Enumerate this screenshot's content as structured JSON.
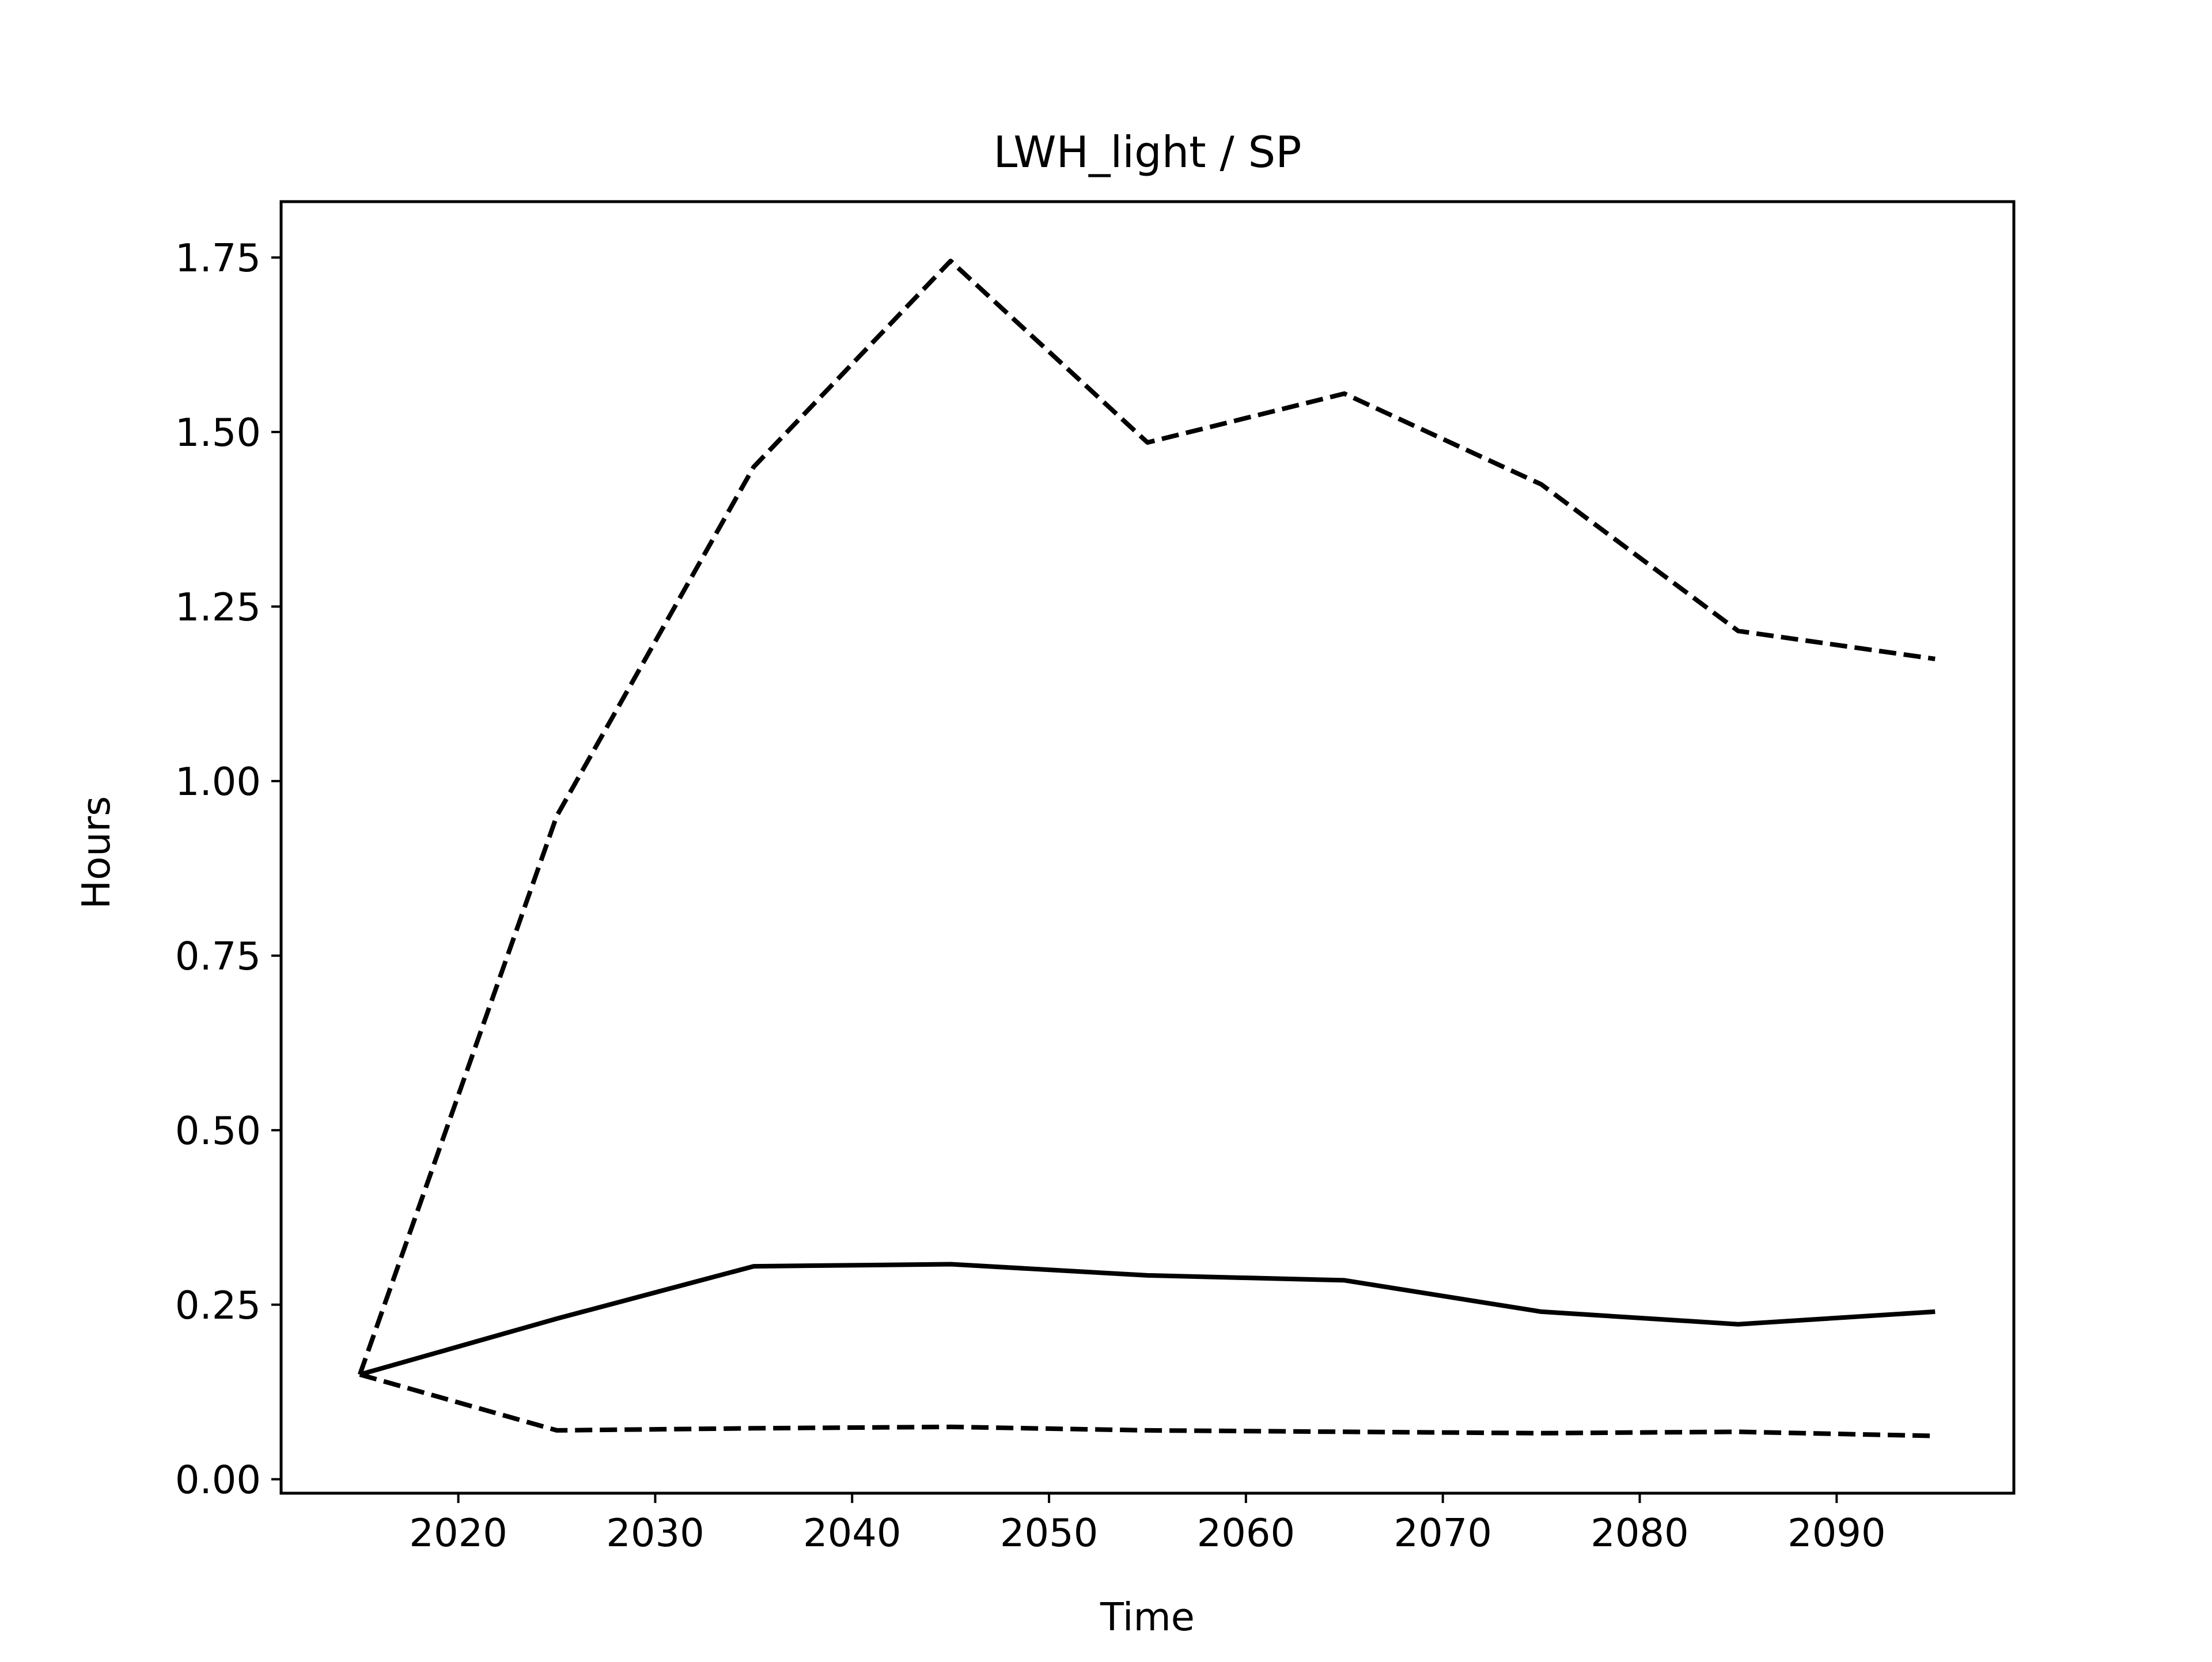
{
  "chart_data": {
    "type": "line",
    "title": "LWH_light / SP",
    "xlabel": "Time",
    "ylabel": "Hours",
    "xlim": [
      2011,
      2099
    ],
    "ylim": [
      -0.02,
      1.83
    ],
    "x_ticks": [
      2020,
      2030,
      2040,
      2050,
      2060,
      2070,
      2080,
      2090
    ],
    "x_tick_labels": [
      "2020",
      "2030",
      "2040",
      "2050",
      "2060",
      "2070",
      "2080",
      "2090"
    ],
    "y_ticks": [
      0.0,
      0.25,
      0.5,
      0.75,
      1.0,
      1.25,
      1.5,
      1.75
    ],
    "y_tick_labels": [
      "0.00",
      "0.25",
      "0.50",
      "0.75",
      "1.00",
      "1.25",
      "1.50",
      "1.75"
    ],
    "grid": false,
    "legend": "none",
    "x": [
      2015,
      2025,
      2035,
      2045,
      2055,
      2065,
      2075,
      2085,
      2095
    ],
    "series": [
      {
        "style": "solid",
        "color": "#000000",
        "values": [
          0.15,
          0.23,
          0.305,
          0.308,
          0.292,
          0.285,
          0.24,
          0.222,
          0.24
        ]
      },
      {
        "style": "dashed",
        "color": "#000000",
        "values": [
          0.15,
          0.95,
          1.45,
          1.745,
          1.485,
          1.555,
          1.425,
          1.215,
          1.175
        ]
      },
      {
        "style": "dashed",
        "color": "#000000",
        "values": [
          0.15,
          0.07,
          0.073,
          0.075,
          0.07,
          0.068,
          0.066,
          0.068,
          0.062
        ]
      }
    ]
  }
}
